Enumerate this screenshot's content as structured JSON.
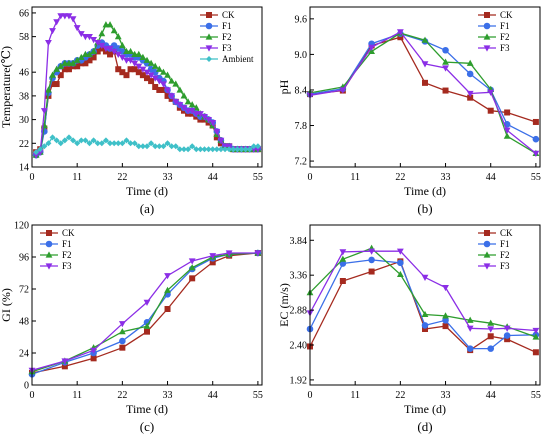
{
  "colors": {
    "CK": "#a52a1f",
    "F1": "#3b6fe8",
    "F2": "#2e9d2e",
    "F3": "#8b2ee6",
    "Ambient": "#3fc0c8"
  },
  "chart_data": [
    {
      "type": "line",
      "panel_label": "(a)",
      "xlabel": "Time (d)",
      "ylabel": "Temperature(℃)",
      "xlim": [
        0,
        56
      ],
      "ylim": [
        14,
        68
      ],
      "xticks": [
        0,
        11,
        22,
        33,
        44,
        55
      ],
      "yticks": [
        14,
        22,
        30,
        38,
        46,
        58,
        66
      ],
      "ytick_labels": [
        "14",
        "22",
        "30",
        "38",
        "46",
        "58",
        "66"
      ],
      "legend_position": "top-right",
      "grid": false,
      "series": [
        {
          "name": "CK",
          "x": [
            1,
            2,
            3,
            4,
            5,
            6,
            7,
            8,
            9,
            10,
            11,
            12,
            13,
            14,
            15,
            16,
            17,
            18,
            19,
            20,
            21,
            22,
            23,
            24,
            25,
            26,
            27,
            28,
            29,
            30,
            31,
            32,
            33,
            34,
            35,
            36,
            37,
            38,
            39,
            40,
            41,
            42,
            43,
            44,
            45,
            46,
            47,
            48,
            49,
            50,
            51,
            52,
            53,
            54,
            55
          ],
          "values": [
            19,
            20,
            27,
            38,
            42,
            42,
            45,
            47,
            47,
            48,
            48,
            49,
            49,
            50,
            51,
            53,
            54,
            53,
            52,
            53,
            47,
            46,
            45,
            47,
            47,
            46,
            45,
            44,
            43,
            41,
            40,
            40,
            38,
            37,
            36,
            34,
            33,
            32,
            32,
            31,
            30,
            30,
            29,
            28,
            24,
            22,
            21,
            21,
            20,
            20,
            20,
            20,
            20,
            20,
            20
          ]
        },
        {
          "name": "F1",
          "x": [
            1,
            2,
            3,
            4,
            5,
            6,
            7,
            8,
            9,
            10,
            11,
            12,
            13,
            14,
            15,
            16,
            17,
            18,
            19,
            20,
            21,
            22,
            23,
            24,
            25,
            26,
            27,
            28,
            29,
            30,
            31,
            32,
            33,
            34,
            35,
            36,
            37,
            38,
            39,
            40,
            41,
            42,
            43,
            44,
            45,
            46,
            47,
            48,
            49,
            50,
            51,
            52,
            53,
            54,
            55
          ],
          "values": [
            18,
            19,
            26,
            39,
            44,
            46,
            48,
            49,
            49,
            49,
            50,
            50,
            51,
            52,
            53,
            55,
            56,
            55,
            54,
            55,
            54,
            53,
            52,
            52,
            51,
            51,
            50,
            49,
            47,
            46,
            44,
            43,
            40,
            38,
            36,
            35,
            34,
            33,
            33,
            32,
            31,
            31,
            30,
            29,
            26,
            23,
            21,
            21,
            20,
            20,
            20,
            20,
            20,
            20,
            20
          ]
        },
        {
          "name": "F2",
          "x": [
            1,
            2,
            3,
            4,
            5,
            6,
            7,
            8,
            9,
            10,
            11,
            12,
            13,
            14,
            15,
            16,
            17,
            18,
            19,
            20,
            21,
            22,
            23,
            24,
            25,
            26,
            27,
            28,
            29,
            30,
            31,
            32,
            33,
            34,
            35,
            36,
            37,
            38,
            39,
            40,
            41,
            42,
            43,
            44,
            45,
            46,
            47,
            48,
            49,
            50,
            51,
            52,
            53,
            54,
            55
          ],
          "values": [
            18,
            19,
            28,
            40,
            45,
            47,
            48,
            49,
            49,
            49,
            50,
            51,
            52,
            52,
            53,
            56,
            59,
            62,
            62,
            60,
            58,
            55,
            53,
            53,
            52,
            52,
            51,
            50,
            49,
            48,
            47,
            46,
            45,
            43,
            42,
            40,
            38,
            36,
            35,
            34,
            32,
            31,
            30,
            28,
            25,
            23,
            21,
            21,
            20,
            20,
            20,
            20,
            20,
            20,
            20
          ]
        },
        {
          "name": "F3",
          "x": [
            1,
            2,
            3,
            4,
            5,
            6,
            7,
            8,
            9,
            10,
            11,
            12,
            13,
            14,
            15,
            16,
            17,
            18,
            19,
            20,
            21,
            22,
            23,
            24,
            25,
            26,
            27,
            28,
            29,
            30,
            31,
            32,
            33,
            34,
            35,
            36,
            37,
            38,
            39,
            40,
            41,
            42,
            43,
            44,
            45,
            46,
            47,
            48,
            49,
            50,
            51,
            52,
            53,
            54,
            55
          ],
          "values": [
            18,
            19,
            33,
            56,
            60,
            63,
            65,
            65,
            65,
            64,
            61,
            59,
            58,
            58,
            57,
            56,
            55,
            54,
            54,
            53,
            52,
            51,
            50,
            50,
            49,
            48,
            47,
            46,
            45,
            44,
            43,
            42,
            40,
            38,
            36,
            35,
            34,
            33,
            33,
            32,
            32,
            31,
            30,
            29,
            26,
            23,
            21,
            21,
            20,
            20,
            20,
            20,
            20,
            20,
            20
          ]
        },
        {
          "name": "Ambient",
          "x": [
            1,
            2,
            3,
            4,
            5,
            6,
            7,
            8,
            9,
            10,
            11,
            12,
            13,
            14,
            15,
            16,
            17,
            18,
            19,
            20,
            21,
            22,
            23,
            24,
            25,
            26,
            27,
            28,
            29,
            30,
            31,
            32,
            33,
            34,
            35,
            36,
            37,
            38,
            39,
            40,
            41,
            42,
            43,
            44,
            45,
            46,
            47,
            48,
            49,
            50,
            51,
            52,
            53,
            54,
            55
          ],
          "values": [
            19,
            20,
            21,
            22,
            24,
            23,
            22,
            23,
            24,
            23,
            22,
            23,
            23,
            22,
            23,
            22,
            22,
            23,
            22,
            22,
            22,
            22,
            23,
            22,
            22,
            21,
            21,
            21,
            22,
            21,
            21,
            21,
            22,
            21,
            21,
            20,
            20,
            20,
            21,
            20,
            20,
            20,
            20,
            20,
            20,
            20,
            20,
            20,
            20,
            20,
            20,
            20,
            20,
            21,
            21
          ]
        }
      ]
    },
    {
      "type": "line",
      "panel_label": "(b)",
      "xlabel": "Time (d)",
      "ylabel": "pH",
      "xlim": [
        0,
        56
      ],
      "ylim": [
        7.1,
        9.8
      ],
      "xticks": [
        0,
        11,
        22,
        33,
        44,
        55
      ],
      "yticks": [
        7.2,
        7.8,
        8.4,
        9.0,
        9.6
      ],
      "ytick_labels": [
        "7.2",
        "7.8",
        "8.4",
        "9.0",
        "9.6"
      ],
      "legend_position": "top-right",
      "grid": false,
      "series": [
        {
          "name": "CK",
          "x": [
            0,
            8,
            15,
            22,
            28,
            33,
            39,
            44,
            48,
            55
          ],
          "values": [
            8.33,
            8.39,
            9.15,
            9.29,
            8.52,
            8.39,
            8.27,
            8.05,
            8.02,
            7.86
          ]
        },
        {
          "name": "F1",
          "x": [
            0,
            8,
            15,
            22,
            28,
            33,
            39,
            44,
            48,
            55
          ],
          "values": [
            8.33,
            8.42,
            9.18,
            9.35,
            9.22,
            9.07,
            8.67,
            8.4,
            7.82,
            7.57
          ]
        },
        {
          "name": "F2",
          "x": [
            0,
            8,
            15,
            22,
            28,
            33,
            39,
            44,
            48,
            55
          ],
          "values": [
            8.35,
            8.45,
            9.05,
            9.36,
            9.24,
            8.87,
            8.85,
            8.41,
            7.62,
            7.33
          ]
        },
        {
          "name": "F3",
          "x": [
            0,
            8,
            15,
            22,
            28,
            33,
            39,
            44,
            48,
            55
          ],
          "values": [
            8.31,
            8.4,
            9.12,
            9.38,
            8.84,
            8.77,
            8.34,
            8.36,
            7.72,
            7.33
          ]
        }
      ]
    },
    {
      "type": "line",
      "panel_label": "(c)",
      "xlabel": "Time (d)",
      "ylabel": "GI (%)",
      "xlim": [
        0,
        56
      ],
      "ylim": [
        0,
        120
      ],
      "xticks": [
        0,
        11,
        22,
        33,
        44,
        55
      ],
      "yticks": [
        0,
        24,
        48,
        72,
        96,
        120
      ],
      "ytick_labels": [
        "0",
        "24",
        "48",
        "72",
        "96",
        "120"
      ],
      "legend_position": "top-left",
      "grid": false,
      "series": [
        {
          "name": "CK",
          "x": [
            0,
            8,
            15,
            22,
            28,
            33,
            39,
            44,
            48,
            55
          ],
          "values": [
            9,
            14,
            20,
            28,
            40,
            57,
            80,
            92,
            97,
            99
          ]
        },
        {
          "name": "F1",
          "x": [
            0,
            8,
            15,
            22,
            28,
            33,
            39,
            44,
            48,
            55
          ],
          "values": [
            8,
            17,
            24,
            33,
            47,
            68,
            87,
            95,
            98,
            99
          ]
        },
        {
          "name": "F2",
          "x": [
            0,
            8,
            15,
            22,
            28,
            33,
            39,
            44,
            48,
            55
          ],
          "values": [
            10,
            18,
            28,
            40,
            44,
            71,
            88,
            96,
            98,
            99
          ]
        },
        {
          "name": "F3",
          "x": [
            0,
            8,
            15,
            22,
            28,
            33,
            39,
            44,
            48,
            55
          ],
          "values": [
            11,
            18,
            26,
            46,
            62,
            82,
            93,
            97,
            99,
            99
          ]
        }
      ]
    },
    {
      "type": "line",
      "panel_label": "(d)",
      "xlabel": "Time (d)",
      "ylabel": "EC (m/s)",
      "xlim": [
        0,
        56
      ],
      "ylim": [
        1.85,
        4.05
      ],
      "xticks": [
        0,
        11,
        22,
        33,
        44,
        55
      ],
      "yticks": [
        1.92,
        2.4,
        2.88,
        3.36,
        3.84
      ],
      "ytick_labels": [
        "1.92",
        "2.40",
        "2.88",
        "3.36",
        "3.84"
      ],
      "legend_position": "top-right",
      "grid": false,
      "series": [
        {
          "name": "CK",
          "x": [
            0,
            8,
            15,
            22,
            28,
            33,
            39,
            44,
            48,
            55
          ],
          "values": [
            2.38,
            3.28,
            3.41,
            3.55,
            2.62,
            2.66,
            2.33,
            2.52,
            2.48,
            2.3
          ]
        },
        {
          "name": "F1",
          "x": [
            0,
            8,
            15,
            22,
            28,
            33,
            39,
            44,
            48,
            55
          ],
          "values": [
            2.62,
            3.52,
            3.57,
            3.53,
            2.67,
            2.74,
            2.35,
            2.35,
            2.53,
            2.54
          ]
        },
        {
          "name": "F2",
          "x": [
            0,
            8,
            15,
            22,
            28,
            33,
            39,
            44,
            48,
            55
          ],
          "values": [
            3.12,
            3.58,
            3.73,
            3.37,
            2.82,
            2.8,
            2.74,
            2.7,
            2.65,
            2.51
          ]
        },
        {
          "name": "F3",
          "x": [
            0,
            8,
            15,
            22,
            28,
            33,
            39,
            44,
            48,
            55
          ],
          "values": [
            2.84,
            3.68,
            3.69,
            3.69,
            3.33,
            3.19,
            2.63,
            2.62,
            2.63,
            2.6
          ]
        }
      ]
    }
  ]
}
